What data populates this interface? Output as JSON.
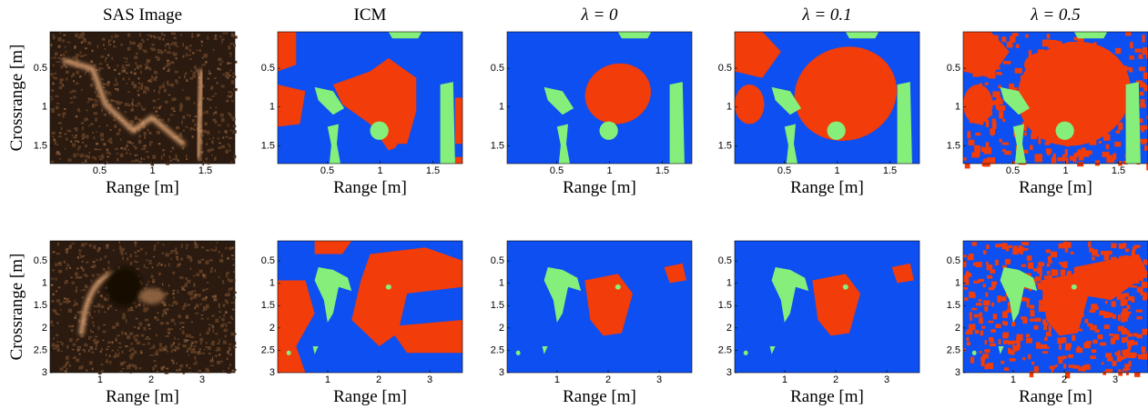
{
  "columns": [
    {
      "title": "SAS Image"
    },
    {
      "title": "ICM"
    },
    {
      "title": "λ = 0"
    },
    {
      "title": "λ = 0.1"
    },
    {
      "title": "λ = 0.5"
    }
  ],
  "rows": [
    {
      "ylabel": "Crossrange [m]",
      "xlabel": "Range [m]",
      "xlim": [
        0.03,
        1.78
      ],
      "ylim": [
        0.03,
        1.73
      ],
      "xticks": [
        0.5,
        1,
        1.5
      ],
      "yticks": [
        0.5,
        1,
        1.5
      ]
    },
    {
      "ylabel": "Crossrange [m]",
      "xlabel": "Range [m]",
      "xlim": [
        0.02,
        3.64
      ],
      "ylim": [
        0.05,
        3
      ],
      "xticks": [
        1,
        2,
        3
      ],
      "yticks": [
        0.5,
        1,
        1.5,
        2,
        2.5,
        3
      ]
    }
  ]
}
